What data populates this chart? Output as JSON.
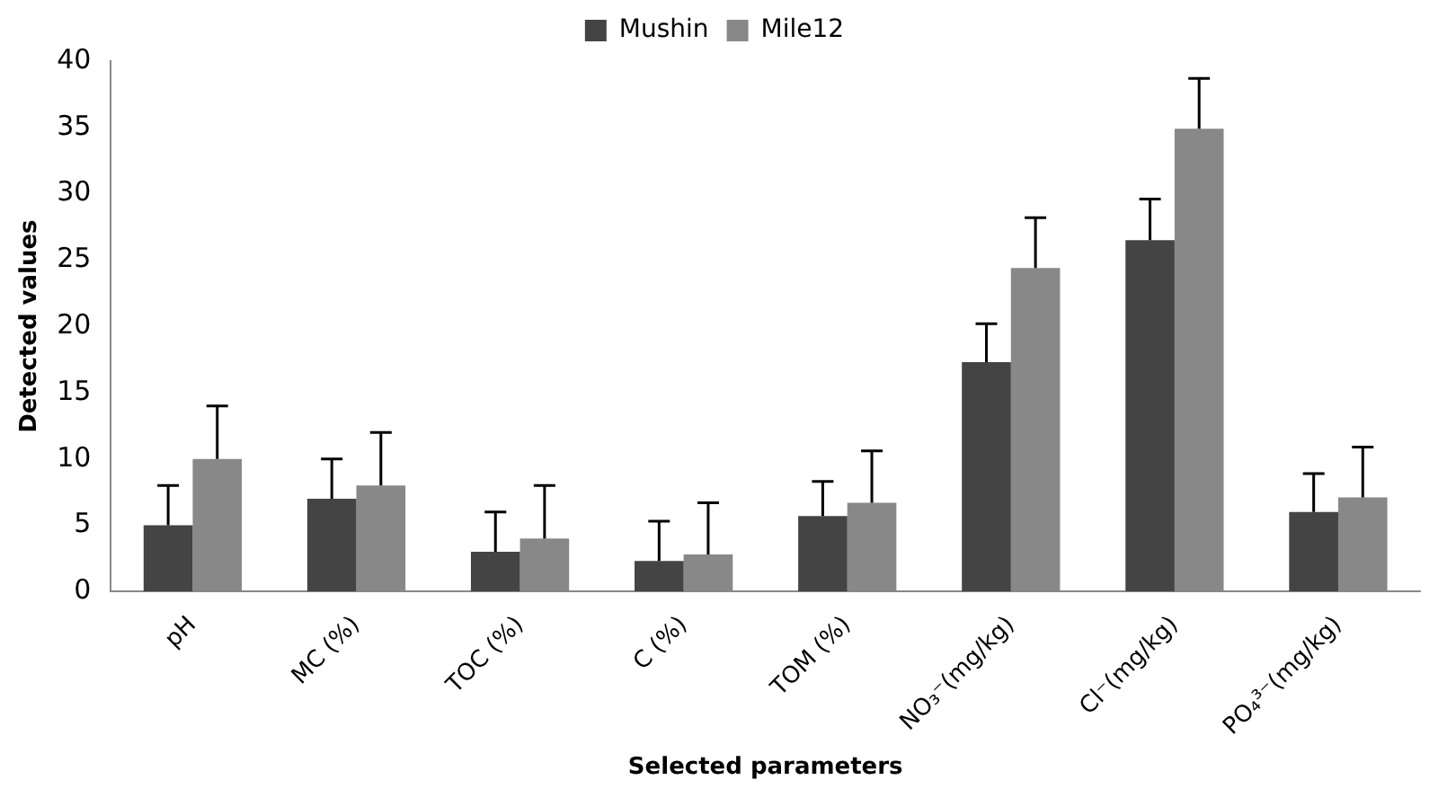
{
  "chart_data": {
    "type": "bar",
    "xlabel": "Selected parameters",
    "ylabel": "Detected values",
    "categories": [
      "pH",
      "MC (%)",
      "TOC (%)",
      "C (%)",
      "TOM (%)",
      "NO₃⁻(mg/kg)",
      "Cl⁻(mg/kg)",
      "PO₄³⁻(mg/kg)"
    ],
    "series": [
      {
        "name": "Mushin",
        "color": "#444444",
        "values": [
          5,
          7,
          3,
          2.3,
          5.7,
          17.3,
          26.5,
          6
        ],
        "errors": [
          [
            5,
            8
          ],
          [
            7,
            10
          ],
          [
            3,
            6
          ],
          [
            2.3,
            5.3
          ],
          [
            5.7,
            8.3
          ],
          [
            17.3,
            20.2
          ],
          [
            26.5,
            29.6
          ],
          [
            6,
            8.9
          ]
        ]
      },
      {
        "name": "Mile12",
        "color": "#888888",
        "values": [
          10,
          8,
          4,
          2.8,
          6.7,
          24.4,
          34.9,
          7.1
        ],
        "errors": [
          [
            10,
            14
          ],
          [
            8,
            12
          ],
          [
            4,
            8
          ],
          [
            2.8,
            6.7
          ],
          [
            6.7,
            10.6
          ],
          [
            24.4,
            28.2
          ],
          [
            34.9,
            38.7
          ],
          [
            7.1,
            10.9
          ]
        ]
      }
    ],
    "ylim": [
      0,
      40
    ],
    "yticks": [
      0,
      5,
      10,
      15,
      20,
      25,
      30,
      35,
      40
    ],
    "grid": false,
    "legend": "top"
  }
}
